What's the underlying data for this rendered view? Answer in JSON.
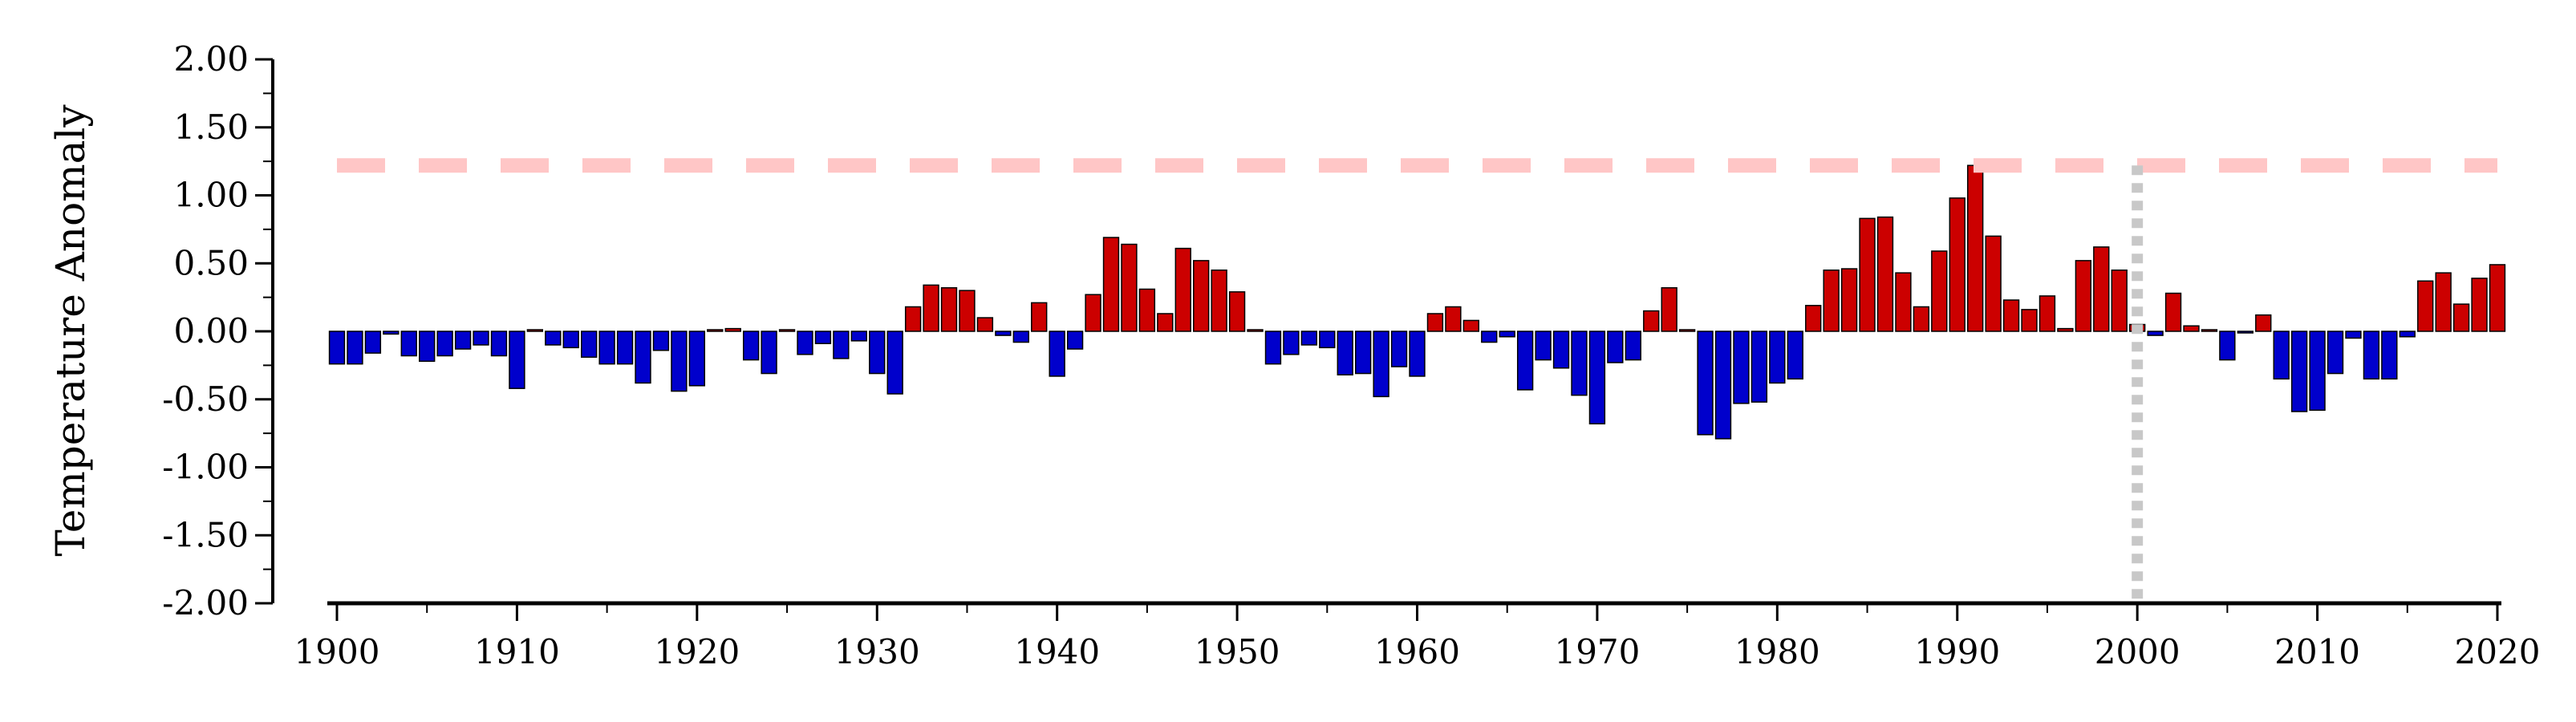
{
  "chart_data": {
    "type": "bar",
    "ylabel": "Temperature Anomaly",
    "xlabel": "",
    "title": "",
    "ylim": [
      -2.0,
      2.0
    ],
    "xlim": [
      1900,
      2020
    ],
    "y_ticks": [
      "2.00",
      "1.50",
      "1.00",
      "0.50",
      "0.00",
      "-0.50",
      "-1.00",
      "-1.50",
      "-2.00"
    ],
    "x_ticks": [
      "1900",
      "1910",
      "1920",
      "1930",
      "1940",
      "1950",
      "1960",
      "1970",
      "1980",
      "1990",
      "2000",
      "2010",
      "2020"
    ],
    "positive_color": "#cc0000",
    "negative_color": "#0000cc",
    "threshold_line": {
      "value": 1.22,
      "color": "#ffc6c6",
      "style": "dashed"
    },
    "reference_line": {
      "year": 2000,
      "color": "#c8c8c8",
      "style": "dotted"
    },
    "years": [
      1900,
      1901,
      1902,
      1903,
      1904,
      1905,
      1906,
      1907,
      1908,
      1909,
      1910,
      1911,
      1912,
      1913,
      1914,
      1915,
      1916,
      1917,
      1918,
      1919,
      1920,
      1921,
      1922,
      1923,
      1924,
      1925,
      1926,
      1927,
      1928,
      1929,
      1930,
      1931,
      1932,
      1933,
      1934,
      1935,
      1936,
      1937,
      1938,
      1939,
      1940,
      1941,
      1942,
      1943,
      1944,
      1945,
      1946,
      1947,
      1948,
      1949,
      1950,
      1951,
      1952,
      1953,
      1954,
      1955,
      1956,
      1957,
      1958,
      1959,
      1960,
      1961,
      1962,
      1963,
      1964,
      1965,
      1966,
      1967,
      1968,
      1969,
      1970,
      1971,
      1972,
      1973,
      1974,
      1975,
      1976,
      1977,
      1978,
      1979,
      1980,
      1981,
      1982,
      1983,
      1984,
      1985,
      1986,
      1987,
      1988,
      1989,
      1990,
      1991,
      1992,
      1993,
      1994,
      1995,
      1996,
      1997,
      1998,
      1999,
      2000,
      2001,
      2002,
      2003,
      2004,
      2005,
      2006,
      2007,
      2008,
      2009,
      2010,
      2011,
      2012,
      2013,
      2014,
      2015,
      2016,
      2017,
      2018,
      2019,
      2020
    ],
    "values": [
      -0.24,
      -0.24,
      -0.16,
      -0.02,
      -0.18,
      -0.22,
      -0.18,
      -0.13,
      -0.1,
      -0.18,
      -0.42,
      0.01,
      -0.1,
      -0.12,
      -0.19,
      -0.24,
      -0.24,
      -0.38,
      -0.14,
      -0.44,
      -0.4,
      0.0,
      0.02,
      -0.21,
      -0.31,
      0.0,
      -0.17,
      -0.09,
      -0.2,
      -0.07,
      -0.31,
      -0.46,
      0.18,
      0.34,
      0.32,
      0.3,
      0.1,
      -0.03,
      -0.08,
      0.21,
      -0.33,
      -0.13,
      0.27,
      0.69,
      0.64,
      0.31,
      0.13,
      0.61,
      0.52,
      0.45,
      0.29,
      0.01,
      -0.24,
      -0.17,
      -0.1,
      -0.12,
      -0.32,
      -0.31,
      -0.48,
      -0.26,
      -0.33,
      0.13,
      0.18,
      0.08,
      -0.08,
      -0.04,
      -0.43,
      -0.21,
      -0.27,
      -0.47,
      -0.68,
      -0.23,
      -0.21,
      0.15,
      0.32,
      0.0,
      -0.76,
      -0.79,
      -0.53,
      -0.52,
      -0.38,
      -0.35,
      0.19,
      0.45,
      0.46,
      0.83,
      0.84,
      0.43,
      0.18,
      0.59,
      0.98,
      1.22,
      0.7,
      0.23,
      0.16,
      0.26,
      0.02,
      0.52,
      0.62,
      0.45,
      0.05,
      -0.03,
      0.28,
      0.04,
      0.01,
      -0.21,
      -0.01,
      0.12,
      -0.35,
      -0.59,
      -0.58,
      -0.31,
      -0.05,
      -0.35,
      -0.35,
      -0.04,
      0.37,
      0.43,
      0.2,
      0.39,
      0.49
    ]
  }
}
